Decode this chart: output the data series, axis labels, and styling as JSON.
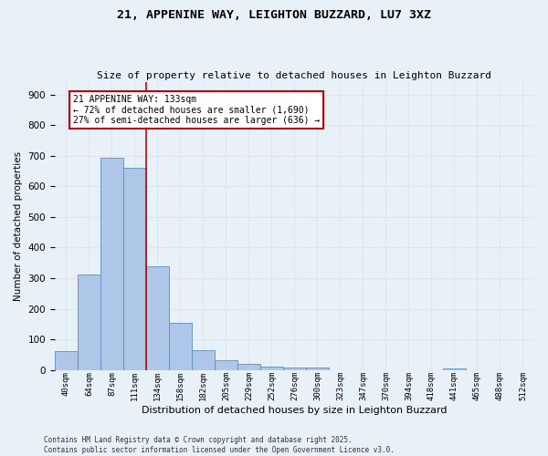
{
  "title_line1": "21, APPENINE WAY, LEIGHTON BUZZARD, LU7 3XZ",
  "title_line2": "Size of property relative to detached houses in Leighton Buzzard",
  "xlabel": "Distribution of detached houses by size in Leighton Buzzard",
  "ylabel": "Number of detached properties",
  "categories": [
    "40sqm",
    "64sqm",
    "87sqm",
    "111sqm",
    "134sqm",
    "158sqm",
    "182sqm",
    "205sqm",
    "229sqm",
    "252sqm",
    "276sqm",
    "300sqm",
    "323sqm",
    "347sqm",
    "370sqm",
    "394sqm",
    "418sqm",
    "441sqm",
    "465sqm",
    "488sqm",
    "512sqm"
  ],
  "values": [
    62,
    312,
    693,
    660,
    338,
    154,
    65,
    33,
    20,
    12,
    8,
    8,
    0,
    0,
    0,
    0,
    0,
    5,
    0,
    0,
    0
  ],
  "bar_color": "#aec6e8",
  "bar_edge_color": "#5a8fc0",
  "grid_color": "#dce6f0",
  "background_color": "#e8f0f8",
  "vline_color": "#cc0000",
  "vline_index": 4,
  "annotation_text": "21 APPENINE WAY: 133sqm\n← 72% of detached houses are smaller (1,690)\n27% of semi-detached houses are larger (636) →",
  "footer_text": "Contains HM Land Registry data © Crown copyright and database right 2025.\nContains public sector information licensed under the Open Government Licence v3.0.",
  "ylim": [
    0,
    940
  ],
  "yticks": [
    0,
    100,
    200,
    300,
    400,
    500,
    600,
    700,
    800,
    900
  ]
}
